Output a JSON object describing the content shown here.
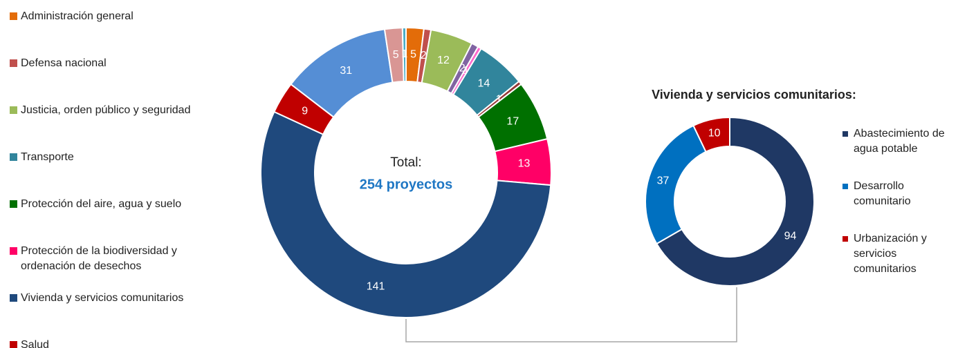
{
  "chart_data": [
    {
      "type": "donut",
      "center_label": "Total:",
      "center_value_label": "254 proyectos",
      "categories": [
        "Administración general",
        "Defensa nacional",
        "Justicia, orden público y seguridad",
        null,
        null,
        "Transporte",
        null,
        "Protección del aire, agua y suelo",
        "Protección de la biodiversidad y ordenación de desechos",
        "Vivienda y servicios comunitarios",
        "Salud",
        null,
        null,
        null
      ],
      "values": [
        5,
        2,
        12,
        2,
        1,
        14,
        1,
        17,
        13,
        141,
        9,
        31,
        5,
        1
      ],
      "colors": [
        "#e36c09",
        "#c0504d",
        "#9bbb59",
        "#8064a2",
        "#ff66cc",
        "#31859c",
        "#953735",
        "#007000",
        "#ff0066",
        "#1f497d",
        "#c00000",
        "#558ed5",
        "#d99694",
        "#4bacc6"
      ]
    },
    {
      "type": "donut",
      "title": "Vivienda y servicios comunitarios:",
      "categories": [
        "Abastecimiento de agua potable",
        "Desarrollo comunitario",
        "Urbanización y servicios comunitarios"
      ],
      "values": [
        94,
        37,
        10
      ],
      "colors": [
        "#1f3864",
        "#0070c0",
        "#c00000"
      ]
    }
  ]
}
